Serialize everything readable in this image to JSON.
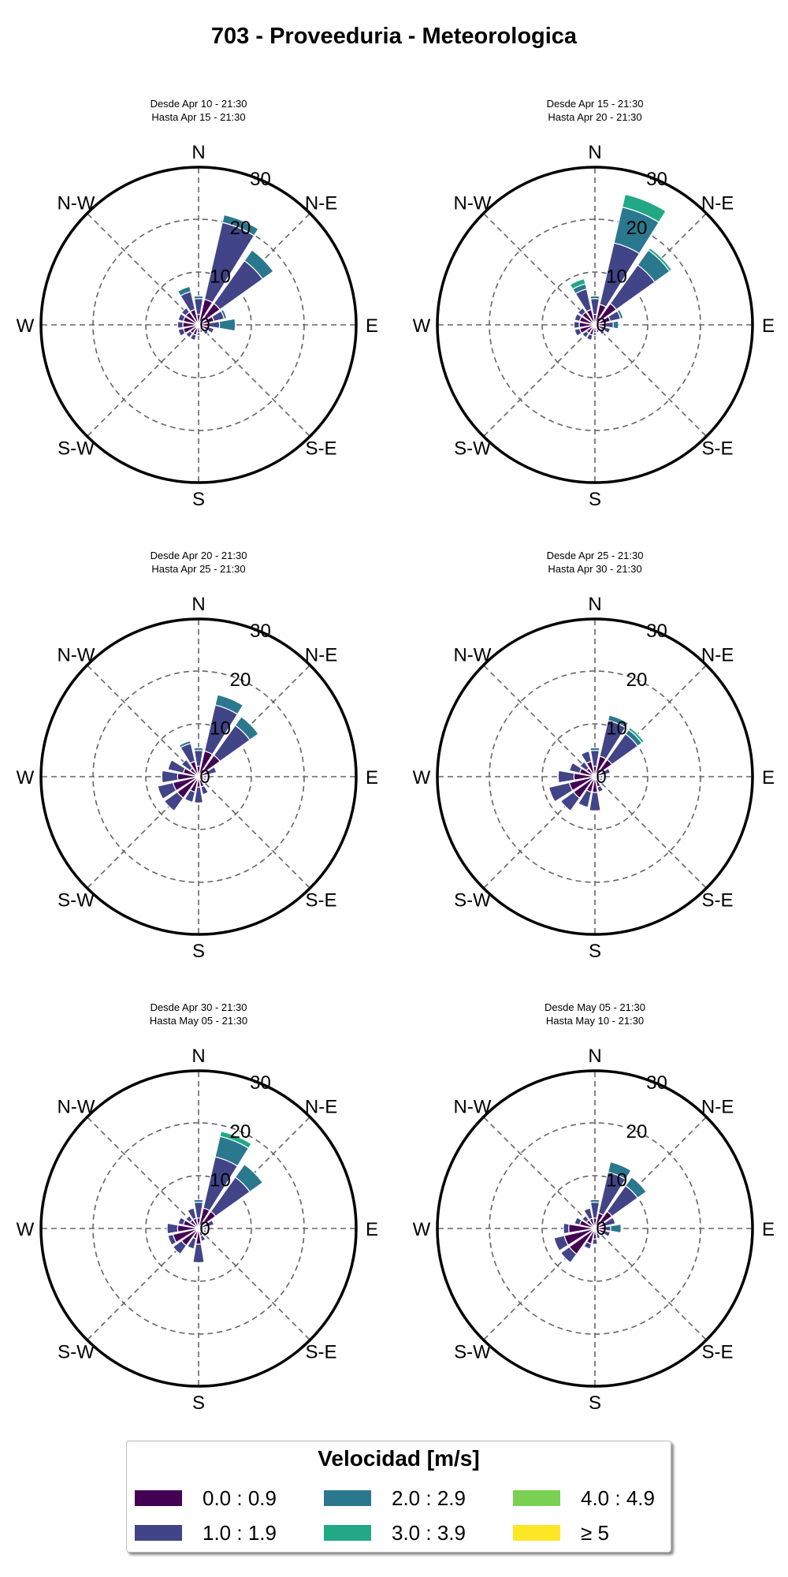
{
  "title": "703 - Proveeduria - Meteorologica",
  "legend": {
    "title": "Velocidad [m/s]",
    "bins": [
      {
        "label": "0.0 : 0.9",
        "color": "#440154"
      },
      {
        "label": "1.0 : 1.9",
        "color": "#414487"
      },
      {
        "label": "2.0 : 2.9",
        "color": "#2a788e"
      },
      {
        "label": "3.0 : 3.9",
        "color": "#22a884"
      },
      {
        "label": "4.0 : 4.9",
        "color": "#7ad151"
      },
      {
        "label": "≥ 5",
        "color": "#fde725"
      }
    ]
  },
  "chart_data": [
    {
      "type": "windrose",
      "subtitle_1": "Desde Apr 10 - 21:30",
      "subtitle_2": "Hasta Apr 15 - 21:30",
      "directions": [
        "N",
        "N-E",
        "E",
        "S-E",
        "S",
        "S-W",
        "W",
        "N-W"
      ],
      "rmax": 30,
      "rticks": [
        0,
        10,
        20,
        30
      ],
      "sectors": 16,
      "stacks": [
        [
          2,
          3,
          0.5,
          0,
          0,
          0
        ],
        [
          5,
          15,
          1.5,
          0,
          0,
          0
        ],
        [
          5,
          10,
          2.5,
          0,
          0,
          0
        ],
        [
          3,
          2,
          0.5,
          0,
          0,
          0
        ],
        [
          2,
          2,
          3,
          0,
          0,
          0
        ],
        [
          2,
          1,
          0,
          0,
          0,
          0
        ],
        [
          1.5,
          0.8,
          0,
          0,
          0,
          0
        ],
        [
          1,
          0.5,
          0,
          0,
          0,
          0
        ],
        [
          1.5,
          0.5,
          0,
          0,
          0,
          0
        ],
        [
          2,
          1,
          0,
          0,
          0,
          0
        ],
        [
          2,
          1,
          0,
          0,
          0,
          0
        ],
        [
          3,
          1,
          0,
          0,
          0,
          0
        ],
        [
          3,
          1,
          0,
          0,
          0,
          0
        ],
        [
          3,
          1,
          0,
          0,
          0,
          0
        ],
        [
          3,
          1,
          0,
          0,
          0,
          0
        ],
        [
          3,
          3.5,
          1,
          0,
          0,
          0
        ]
      ]
    },
    {
      "type": "windrose",
      "subtitle_1": "Desde Apr 15 - 21:30",
      "subtitle_2": "Hasta Apr 20 - 21:30",
      "directions": [
        "N",
        "N-E",
        "E",
        "S-E",
        "S",
        "S-W",
        "W",
        "N-W"
      ],
      "rmax": 30,
      "rticks": [
        0,
        10,
        20,
        30
      ],
      "sectors": 16,
      "stacks": [
        [
          2,
          3,
          0.5,
          0,
          0,
          0
        ],
        [
          4,
          12,
          7,
          2.5,
          0,
          0
        ],
        [
          5,
          9,
          3.5,
          0.5,
          0,
          0
        ],
        [
          3,
          2,
          0.5,
          0,
          0,
          0
        ],
        [
          2,
          1.5,
          1,
          0,
          0,
          0
        ],
        [
          2,
          1,
          0,
          0,
          0,
          0
        ],
        [
          1.5,
          0.8,
          0,
          0,
          0,
          0
        ],
        [
          1,
          0.5,
          0,
          0,
          0,
          0
        ],
        [
          1.5,
          0.5,
          0,
          0,
          0,
          0
        ],
        [
          2,
          1,
          0,
          0,
          0,
          0
        ],
        [
          2,
          1,
          0,
          0,
          0,
          0
        ],
        [
          3,
          1,
          0,
          0,
          0,
          0
        ],
        [
          3,
          1,
          0,
          0,
          0,
          0
        ],
        [
          3,
          1,
          0,
          0,
          0,
          0
        ],
        [
          3,
          1,
          0,
          0,
          0,
          0
        ],
        [
          3,
          4,
          1,
          1,
          0,
          0
        ]
      ]
    },
    {
      "type": "windrose",
      "subtitle_1": "Desde Apr 20 - 21:30",
      "subtitle_2": "Hasta Apr 25 - 21:30",
      "directions": [
        "N",
        "N-E",
        "E",
        "S-E",
        "S",
        "S-W",
        "W",
        "N-W"
      ],
      "rmax": 30,
      "rticks": [
        0,
        10,
        20,
        30
      ],
      "sectors": 16,
      "stacks": [
        [
          2,
          3,
          0.5,
          0,
          0,
          0
        ],
        [
          5,
          9,
          2,
          0,
          0,
          0
        ],
        [
          5,
          7,
          2,
          0,
          0,
          0
        ],
        [
          2,
          1.5,
          0,
          0,
          0,
          0
        ],
        [
          1,
          0.5,
          0,
          0,
          0,
          0
        ],
        [
          1,
          0.5,
          0,
          0,
          0,
          0
        ],
        [
          1,
          0.5,
          0,
          0,
          0,
          0
        ],
        [
          2,
          1.5,
          0,
          0,
          0,
          0
        ],
        [
          2,
          3,
          0,
          0,
          0,
          0
        ],
        [
          3,
          2,
          0,
          0,
          0,
          0
        ],
        [
          5,
          3,
          0,
          0,
          0,
          0
        ],
        [
          5,
          3,
          0,
          0,
          0,
          0
        ],
        [
          4,
          3,
          0,
          0,
          0,
          0
        ],
        [
          3,
          3,
          0,
          0,
          0,
          0
        ],
        [
          2,
          2,
          0,
          0,
          0,
          0
        ],
        [
          3,
          3.5,
          0.5,
          0,
          0,
          0
        ]
      ]
    },
    {
      "type": "windrose",
      "subtitle_1": "Desde Apr 25 - 21:30",
      "subtitle_2": "Hasta Apr 30 - 21:30",
      "directions": [
        "N",
        "N-E",
        "E",
        "S-E",
        "S",
        "S-W",
        "W",
        "N-W"
      ],
      "rmax": 30,
      "rticks": [
        0,
        10,
        20,
        30
      ],
      "sectors": 16,
      "stacks": [
        [
          2,
          3,
          0.5,
          0,
          0,
          0
        ],
        [
          4,
          7,
          1,
          0,
          0,
          0
        ],
        [
          4,
          6,
          1,
          0.5,
          0,
          0
        ],
        [
          2,
          1,
          0,
          0,
          0,
          0
        ],
        [
          1,
          0.5,
          0,
          0,
          0,
          0
        ],
        [
          1,
          0.5,
          0,
          0,
          0,
          0
        ],
        [
          1,
          0.5,
          0,
          0,
          0,
          0
        ],
        [
          2,
          1,
          0,
          0,
          0,
          0
        ],
        [
          3,
          3.5,
          0,
          0,
          0,
          0
        ],
        [
          3,
          3,
          0,
          0,
          0,
          0
        ],
        [
          5,
          3,
          0,
          0,
          0,
          0
        ],
        [
          5,
          4,
          0,
          0,
          0,
          0
        ],
        [
          4,
          3,
          0,
          0,
          0,
          0
        ],
        [
          3,
          2,
          0,
          0,
          0,
          0
        ],
        [
          2,
          1.5,
          0,
          0,
          0,
          0
        ],
        [
          3,
          2,
          0,
          0,
          0,
          0
        ]
      ]
    },
    {
      "type": "windrose",
      "subtitle_1": "Desde Apr 30 - 21:30",
      "subtitle_2": "Hasta May 05 - 21:30",
      "directions": [
        "N",
        "N-E",
        "E",
        "S-E",
        "S",
        "S-W",
        "W",
        "N-W"
      ],
      "rmax": 30,
      "rticks": [
        0,
        10,
        20,
        30
      ],
      "sectors": 16,
      "stacks": [
        [
          2,
          3,
          0.5,
          0,
          0,
          0
        ],
        [
          4,
          10,
          4,
          1,
          0,
          0
        ],
        [
          4,
          8,
          3,
          0,
          0,
          0
        ],
        [
          2,
          1,
          0,
          0,
          0,
          0
        ],
        [
          1,
          0.5,
          0,
          0,
          0,
          0
        ],
        [
          1,
          0.5,
          0,
          0,
          0,
          0
        ],
        [
          1,
          1,
          0,
          0,
          0,
          0
        ],
        [
          1.5,
          1,
          0,
          0,
          0,
          0
        ],
        [
          3,
          3.5,
          0,
          0,
          0,
          0
        ],
        [
          2,
          2,
          0,
          0,
          0,
          0
        ],
        [
          4,
          2,
          0,
          0,
          0,
          0
        ],
        [
          5,
          1,
          0,
          0,
          0,
          0
        ],
        [
          4,
          2,
          0,
          0,
          0,
          0
        ],
        [
          3,
          1,
          0,
          0,
          0,
          0
        ],
        [
          2,
          1,
          0,
          0,
          0,
          0
        ],
        [
          2,
          2,
          0,
          0,
          0,
          0
        ]
      ]
    },
    {
      "type": "windrose",
      "subtitle_1": "Desde May 05 - 21:30",
      "subtitle_2": "Hasta May 10 - 21:30",
      "directions": [
        "N",
        "N-E",
        "E",
        "S-E",
        "S",
        "S-W",
        "W",
        "N-W"
      ],
      "rmax": 30,
      "rticks": [
        0,
        10,
        20,
        30
      ],
      "sectors": 16,
      "stacks": [
        [
          2,
          3,
          0.5,
          0,
          0,
          0
        ],
        [
          3,
          8,
          2,
          0,
          0,
          0
        ],
        [
          4,
          6,
          2,
          0,
          0,
          0
        ],
        [
          2,
          2,
          0,
          0,
          0,
          0
        ],
        [
          2,
          1,
          2,
          0,
          0,
          0
        ],
        [
          2,
          1,
          0,
          0,
          0,
          0
        ],
        [
          1,
          0.5,
          0,
          0,
          0,
          0
        ],
        [
          1,
          1,
          0,
          0,
          0,
          0
        ],
        [
          2,
          1,
          0,
          0,
          0,
          0
        ],
        [
          3,
          1,
          0,
          0,
          0,
          0
        ],
        [
          6,
          2,
          0,
          0,
          0,
          0
        ],
        [
          6,
          2,
          0,
          0,
          0,
          0
        ],
        [
          5,
          1,
          0,
          0,
          0,
          0
        ],
        [
          3,
          1,
          0,
          0,
          0,
          0
        ],
        [
          2,
          1,
          0,
          0,
          0,
          0
        ],
        [
          2,
          2,
          0,
          0,
          0,
          0
        ]
      ]
    }
  ]
}
